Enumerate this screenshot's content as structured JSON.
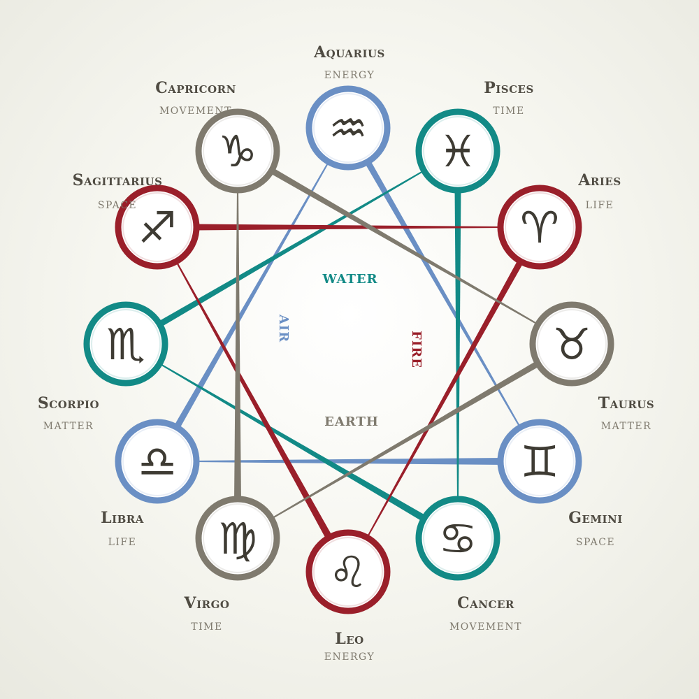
{
  "colors": {
    "air": "#6a8fc4",
    "water": "#128a86",
    "fire": "#9a1f2a",
    "earth": "#7f7a6e"
  },
  "elements": {
    "water": "WATER",
    "air": "AIR",
    "fire": "FIRE",
    "earth": "EARTH"
  },
  "signs": [
    {
      "id": "aquarius",
      "name": "Aquarius",
      "sub": "ENERGY",
      "glyph": "♒",
      "element": "air"
    },
    {
      "id": "pisces",
      "name": "Pisces",
      "sub": "TIME",
      "glyph": "♓",
      "element": "water"
    },
    {
      "id": "aries",
      "name": "Aries",
      "sub": "LIFE",
      "glyph": "♈",
      "element": "fire"
    },
    {
      "id": "taurus",
      "name": "Taurus",
      "sub": "MATTER",
      "glyph": "♉",
      "element": "earth"
    },
    {
      "id": "gemini",
      "name": "Gemini",
      "sub": "SPACE",
      "glyph": "♊",
      "element": "air"
    },
    {
      "id": "cancer",
      "name": "Cancer",
      "sub": "MOVEMENT",
      "glyph": "♋",
      "element": "water"
    },
    {
      "id": "leo",
      "name": "Leo",
      "sub": "ENERGY",
      "glyph": "♌",
      "element": "fire"
    },
    {
      "id": "virgo",
      "name": "Virgo",
      "sub": "TIME",
      "glyph": "♍",
      "element": "earth"
    },
    {
      "id": "libra",
      "name": "Libra",
      "sub": "LIFE",
      "glyph": "♎",
      "element": "air"
    },
    {
      "id": "scorpio",
      "name": "Scorpio",
      "sub": "MATTER",
      "glyph": "♏",
      "element": "water"
    },
    {
      "id": "sagittarius",
      "name": "Sagittarius",
      "sub": "SPACE",
      "glyph": "♐",
      "element": "fire"
    },
    {
      "id": "capricorn",
      "name": "Capricorn",
      "sub": "MOVEMENT",
      "glyph": "♑",
      "element": "earth"
    }
  ]
}
